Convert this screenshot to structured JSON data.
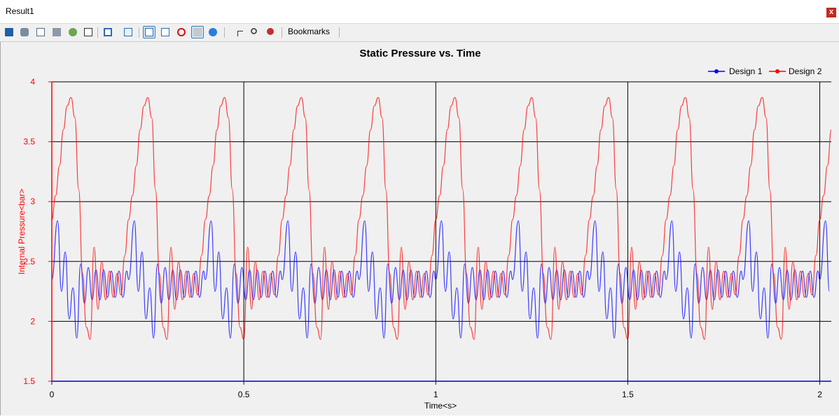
{
  "window": {
    "title": "Result1",
    "close_label": "x"
  },
  "toolbar": {
    "bookmarks_label": "Bookmarks",
    "icons": [
      "save-icon",
      "print-setup-icon",
      "print-preview-icon",
      "print-icon",
      "export-icon",
      "chart-image-icon",
      "window-icon",
      "edit-icon",
      "line-chart-icon",
      "chart-check-icon",
      "stop-icon",
      "blank-chart-icon",
      "help-icon",
      "crosshair-icon",
      "zoom-icon",
      "clear-icon"
    ]
  },
  "colors": {
    "design1": "#0000ff",
    "design2": "#ff0000",
    "axis_y": "#ff0000",
    "axis_x": "#0000cc",
    "grid": "#000000"
  },
  "chart_data": {
    "type": "line",
    "title": "Static Pressure vs. Time",
    "xlabel": "Time<s>",
    "ylabel": "Internal Pressure<bar>",
    "xlim": [
      0,
      2.03
    ],
    "ylim": [
      1.5,
      4
    ],
    "xticks": [
      "0",
      "0.5",
      "1",
      "1.5",
      "2"
    ],
    "yticks": [
      "1.5",
      "2",
      "2.5",
      "3",
      "3.5",
      "4"
    ],
    "grid": true,
    "legend": "top-right",
    "period": 0.2,
    "series": [
      {
        "name": "Design 1",
        "color": "#0000ff",
        "cycle_t": [
          0,
          0.015,
          0.025,
          0.035,
          0.045,
          0.055,
          0.065,
          0.075,
          0.085,
          0.095,
          0.105,
          0.115,
          0.125,
          0.135,
          0.145,
          0.155,
          0.165,
          0.175,
          0.185,
          0.195,
          0.2
        ],
        "cycle_v": [
          2.35,
          2.84,
          2.25,
          2.58,
          2.02,
          2.28,
          1.86,
          2.48,
          2.15,
          2.45,
          2.18,
          2.43,
          2.18,
          2.43,
          2.2,
          2.42,
          2.2,
          2.42,
          2.2,
          2.42,
          2.35
        ]
      },
      {
        "name": "Design 2",
        "color": "#ff0000",
        "cycle_t": [
          0,
          0.01,
          0.02,
          0.03,
          0.04,
          0.05,
          0.06,
          0.07,
          0.08,
          0.09,
          0.1,
          0.11,
          0.12,
          0.13,
          0.14,
          0.15,
          0.16,
          0.17,
          0.18,
          0.19,
          0.2
        ],
        "cycle_v": [
          2.85,
          3.05,
          3.3,
          3.6,
          3.8,
          3.87,
          3.7,
          3.1,
          2.4,
          1.95,
          1.85,
          2.62,
          2.1,
          2.5,
          2.18,
          2.42,
          2.2,
          2.4,
          2.22,
          2.55,
          2.85
        ]
      }
    ]
  }
}
